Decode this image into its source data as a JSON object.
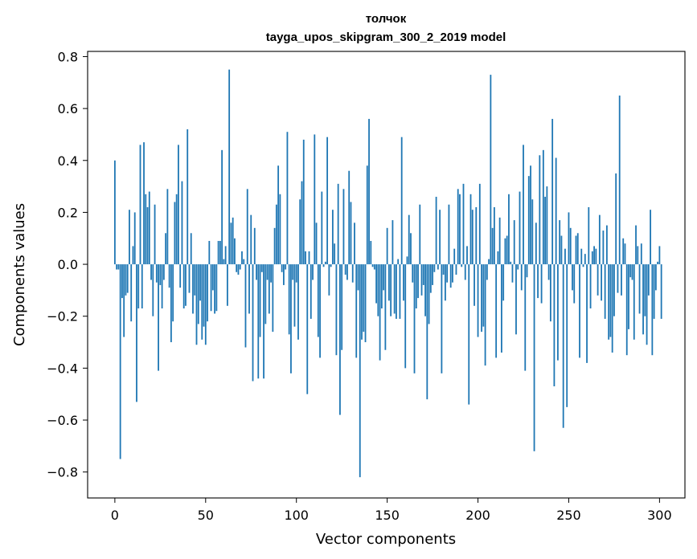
{
  "chart_data": {
    "type": "bar",
    "title_lines": [
      "толчок",
      "tayga_upos_skipgram_300_2_2019 model"
    ],
    "xlabel": "Vector components",
    "ylabel": "Components values",
    "xlim": [
      -15,
      314
    ],
    "ylim": [
      -0.9,
      0.82
    ],
    "xticks": [
      0,
      50,
      100,
      150,
      200,
      250,
      300
    ],
    "xtick_labels": [
      "0",
      "50",
      "100",
      "150",
      "200",
      "250",
      "300"
    ],
    "yticks": [
      -0.8,
      -0.6,
      -0.4,
      -0.2,
      0.0,
      0.2,
      0.4,
      0.6,
      0.8
    ],
    "ytick_labels": [
      "−0.8",
      "−0.6",
      "−0.4",
      "−0.2",
      "0.0",
      "0.2",
      "0.4",
      "0.6",
      "0.8"
    ],
    "bar_color": "#1f77b4",
    "grid": false,
    "values": [
      0.4,
      -0.02,
      -0.02,
      -0.75,
      -0.13,
      -0.28,
      -0.12,
      -0.11,
      0.21,
      -0.22,
      0.07,
      0.2,
      -0.53,
      -0.17,
      0.46,
      -0.17,
      0.47,
      0.27,
      0.22,
      0.28,
      -0.06,
      -0.2,
      0.23,
      -0.07,
      -0.41,
      -0.08,
      -0.17,
      -0.06,
      0.12,
      0.29,
      -0.09,
      -0.3,
      -0.22,
      0.24,
      0.27,
      0.46,
      -0.09,
      0.32,
      -0.17,
      -0.16,
      0.52,
      -0.11,
      0.12,
      -0.19,
      -0.12,
      -0.31,
      -0.23,
      -0.14,
      -0.29,
      -0.24,
      -0.31,
      -0.22,
      0.09,
      -0.18,
      -0.1,
      -0.19,
      -0.18,
      0.09,
      0.09,
      0.44,
      0.02,
      0.07,
      -0.16,
      0.75,
      0.16,
      0.18,
      0.1,
      -0.03,
      -0.04,
      -0.02,
      0.05,
      0.02,
      -0.32,
      0.29,
      -0.19,
      0.19,
      -0.45,
      0.14,
      -0.06,
      -0.44,
      -0.28,
      -0.03,
      -0.44,
      -0.23,
      -0.06,
      -0.19,
      -0.07,
      -0.26,
      0.14,
      0.23,
      0.38,
      0.27,
      -0.03,
      -0.08,
      -0.02,
      0.51,
      -0.27,
      -0.42,
      -0.06,
      -0.24,
      -0.07,
      -0.29,
      0.25,
      0.32,
      0.48,
      0.05,
      -0.5,
      0.05,
      -0.21,
      -0.06,
      0.5,
      0.16,
      -0.28,
      -0.36,
      0.28,
      -0.01,
      0.01,
      0.49,
      -0.12,
      -0.01,
      0.21,
      0.08,
      -0.35,
      0.31,
      -0.58,
      -0.33,
      0.29,
      -0.04,
      -0.06,
      0.36,
      0.24,
      -0.07,
      0.16,
      -0.36,
      -0.1,
      -0.82,
      -0.29,
      -0.26,
      -0.3,
      0.38,
      0.56,
      0.09,
      -0.01,
      -0.02,
      -0.15,
      -0.2,
      -0.37,
      -0.17,
      -0.1,
      -0.33,
      0.14,
      -0.14,
      -0.2,
      0.17,
      -0.19,
      -0.21,
      0.02,
      -0.21,
      0.49,
      -0.14,
      -0.4,
      0.03,
      0.19,
      0.12,
      -0.07,
      -0.42,
      -0.17,
      -0.13,
      0.23,
      -0.12,
      -0.08,
      -0.2,
      -0.52,
      -0.23,
      -0.11,
      -0.08,
      -0.03,
      0.26,
      -0.02,
      0.21,
      -0.42,
      -0.04,
      -0.14,
      -0.07,
      0.23,
      -0.09,
      -0.07,
      0.06,
      -0.04,
      0.29,
      0.27,
      -0.01,
      0.31,
      -0.06,
      0.07,
      -0.54,
      0.27,
      0.21,
      -0.16,
      0.22,
      -0.28,
      0.31,
      -0.26,
      -0.24,
      -0.39,
      -0.06,
      0.02,
      0.73,
      0.14,
      0.22,
      -0.36,
      0.05,
      0.18,
      -0.34,
      -0.14,
      0.1,
      0.11,
      0.27,
      0.01,
      -0.07,
      0.17,
      -0.27,
      -0.02,
      0.28,
      -0.1,
      0.46,
      -0.41,
      -0.05,
      0.34,
      0.38,
      0.25,
      -0.72,
      0.16,
      -0.13,
      0.42,
      -0.15,
      0.44,
      0.26,
      0.3,
      -0.06,
      -0.22,
      0.56,
      -0.47,
      0.41,
      -0.37,
      0.17,
      0.11,
      -0.63,
      0.06,
      -0.55,
      0.2,
      0.14,
      -0.1,
      -0.15,
      0.11,
      0.12,
      -0.36,
      0.06,
      -0.01,
      0.04,
      -0.38,
      0.22,
      -0.17,
      0.05,
      0.07,
      0.06,
      -0.12,
      0.19,
      -0.14,
      0.13,
      -0.21,
      0.15,
      -0.29,
      -0.28,
      -0.34,
      -0.2,
      0.35,
      -0.11,
      0.65,
      -0.12,
      0.1,
      0.08,
      -0.35,
      -0.25,
      -0.05,
      -0.06,
      -0.29,
      0.15,
      0.07,
      -0.19,
      0.08,
      -0.27,
      -0.2,
      -0.31,
      -0.12,
      0.21,
      -0.35,
      -0.21,
      -0.1,
      0.01,
      0.07,
      -0.21
    ]
  }
}
